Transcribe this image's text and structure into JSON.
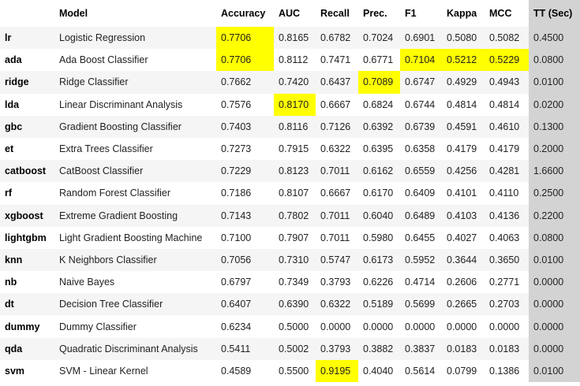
{
  "table": {
    "headers": [
      "",
      "Model",
      "Accuracy",
      "AUC",
      "Recall",
      "Prec.",
      "F1",
      "Kappa",
      "MCC",
      "TT (Sec)"
    ],
    "rows": [
      {
        "id": "lr",
        "model": "Logistic Regression",
        "values": [
          "0.7706",
          "0.8165",
          "0.6782",
          "0.7024",
          "0.6901",
          "0.5080",
          "0.5082",
          "0.4500"
        ],
        "highlight": [
          true,
          false,
          false,
          false,
          false,
          false,
          false
        ]
      },
      {
        "id": "ada",
        "model": "Ada Boost Classifier",
        "values": [
          "0.7706",
          "0.8112",
          "0.7471",
          "0.6771",
          "0.7104",
          "0.5212",
          "0.5229",
          "0.0800"
        ],
        "highlight": [
          true,
          false,
          false,
          false,
          true,
          true,
          true
        ]
      },
      {
        "id": "ridge",
        "model": "Ridge Classifier",
        "values": [
          "0.7662",
          "0.7420",
          "0.6437",
          "0.7089",
          "0.6747",
          "0.4929",
          "0.4943",
          "0.0100"
        ],
        "highlight": [
          false,
          false,
          false,
          true,
          false,
          false,
          false
        ]
      },
      {
        "id": "lda",
        "model": "Linear Discriminant Analysis",
        "values": [
          "0.7576",
          "0.8170",
          "0.6667",
          "0.6824",
          "0.6744",
          "0.4814",
          "0.4814",
          "0.0200"
        ],
        "highlight": [
          false,
          true,
          false,
          false,
          false,
          false,
          false
        ]
      },
      {
        "id": "gbc",
        "model": "Gradient Boosting Classifier",
        "values": [
          "0.7403",
          "0.8116",
          "0.7126",
          "0.6392",
          "0.6739",
          "0.4591",
          "0.4610",
          "0.1300"
        ],
        "highlight": [
          false,
          false,
          false,
          false,
          false,
          false,
          false
        ]
      },
      {
        "id": "et",
        "model": "Extra Trees Classifier",
        "values": [
          "0.7273",
          "0.7915",
          "0.6322",
          "0.6395",
          "0.6358",
          "0.4179",
          "0.4179",
          "0.2000"
        ],
        "highlight": [
          false,
          false,
          false,
          false,
          false,
          false,
          false
        ]
      },
      {
        "id": "catboost",
        "model": "CatBoost Classifier",
        "values": [
          "0.7229",
          "0.8123",
          "0.7011",
          "0.6162",
          "0.6559",
          "0.4256",
          "0.4281",
          "1.6600"
        ],
        "highlight": [
          false,
          false,
          false,
          false,
          false,
          false,
          false
        ]
      },
      {
        "id": "rf",
        "model": "Random Forest Classifier",
        "values": [
          "0.7186",
          "0.8107",
          "0.6667",
          "0.6170",
          "0.6409",
          "0.4101",
          "0.4110",
          "0.2500"
        ],
        "highlight": [
          false,
          false,
          false,
          false,
          false,
          false,
          false
        ]
      },
      {
        "id": "xgboost",
        "model": "Extreme Gradient Boosting",
        "values": [
          "0.7143",
          "0.7802",
          "0.7011",
          "0.6040",
          "0.6489",
          "0.4103",
          "0.4136",
          "0.2200"
        ],
        "highlight": [
          false,
          false,
          false,
          false,
          false,
          false,
          false
        ]
      },
      {
        "id": "lightgbm",
        "model": "Light Gradient Boosting Machine",
        "values": [
          "0.7100",
          "0.7907",
          "0.7011",
          "0.5980",
          "0.6455",
          "0.4027",
          "0.4063",
          "0.0800"
        ],
        "highlight": [
          false,
          false,
          false,
          false,
          false,
          false,
          false
        ]
      },
      {
        "id": "knn",
        "model": "K Neighbors Classifier",
        "values": [
          "0.7056",
          "0.7310",
          "0.5747",
          "0.6173",
          "0.5952",
          "0.3644",
          "0.3650",
          "0.0100"
        ],
        "highlight": [
          false,
          false,
          false,
          false,
          false,
          false,
          false
        ]
      },
      {
        "id": "nb",
        "model": "Naive Bayes",
        "values": [
          "0.6797",
          "0.7349",
          "0.3793",
          "0.6226",
          "0.4714",
          "0.2606",
          "0.2771",
          "0.0000"
        ],
        "highlight": [
          false,
          false,
          false,
          false,
          false,
          false,
          false
        ]
      },
      {
        "id": "dt",
        "model": "Decision Tree Classifier",
        "values": [
          "0.6407",
          "0.6390",
          "0.6322",
          "0.5189",
          "0.5699",
          "0.2665",
          "0.2703",
          "0.0000"
        ],
        "highlight": [
          false,
          false,
          false,
          false,
          false,
          false,
          false
        ]
      },
      {
        "id": "dummy",
        "model": "Dummy Classifier",
        "values": [
          "0.6234",
          "0.5000",
          "0.0000",
          "0.0000",
          "0.0000",
          "0.0000",
          "0.0000",
          "0.0000"
        ],
        "highlight": [
          false,
          false,
          false,
          false,
          false,
          false,
          false
        ]
      },
      {
        "id": "qda",
        "model": "Quadratic Discriminant Analysis",
        "values": [
          "0.5411",
          "0.5002",
          "0.3793",
          "0.3882",
          "0.3837",
          "0.0183",
          "0.0183",
          "0.0000"
        ],
        "highlight": [
          false,
          false,
          false,
          false,
          false,
          false,
          false
        ]
      },
      {
        "id": "svm",
        "model": "SVM - Linear Kernel",
        "values": [
          "0.4589",
          "0.5500",
          "0.9195",
          "0.4040",
          "0.5614",
          "0.0799",
          "0.1386",
          "0.0100"
        ],
        "highlight": [
          false,
          false,
          true,
          false,
          false,
          false,
          false
        ]
      }
    ]
  },
  "colors": {
    "highlight": "#ffff00",
    "tt_column": "#d3d3d3",
    "stripe": "#f5f5f5"
  }
}
